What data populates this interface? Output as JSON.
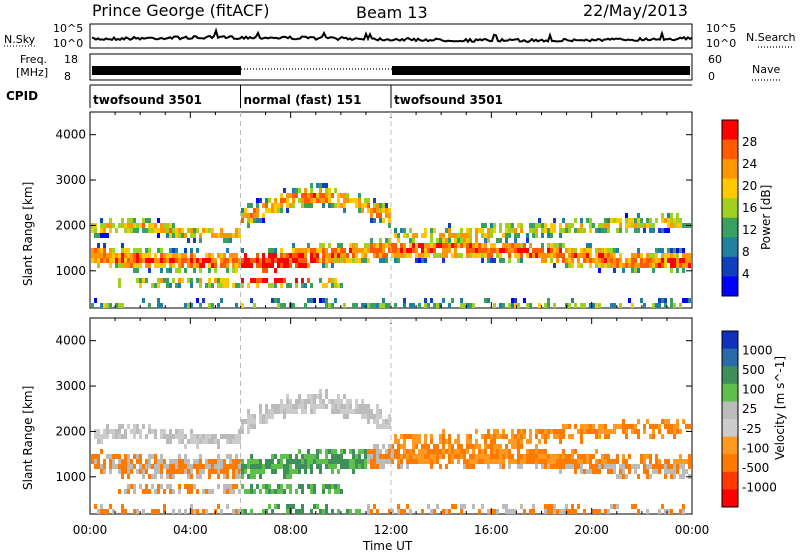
{
  "header": {
    "radar": "Prince George (fitACF)",
    "beam": "Beam 13",
    "date": "22/May/2013"
  },
  "noise_panel": {
    "left_label": "N.Sky",
    "right_label": "N.Search",
    "left_ticks": [
      "10^5",
      "10^0"
    ],
    "right_ticks": [
      "10^5",
      "10^0"
    ]
  },
  "freq_panel": {
    "left_label_1": "Freq.",
    "left_label_2": "[MHz]",
    "right_label": "Nave",
    "left_ticks": [
      "18",
      "8"
    ],
    "right_ticks": [
      "60",
      "0"
    ]
  },
  "cpid": {
    "label": "CPID",
    "segments": [
      {
        "label": "twofsound 3501",
        "start_hour": 0,
        "end_hour": 6
      },
      {
        "label": "normal (fast) 151",
        "start_hour": 6,
        "end_hour": 12
      },
      {
        "label": "twofsound 3501",
        "start_hour": 12,
        "end_hour": 24
      }
    ]
  },
  "chart_data": [
    {
      "type": "heatmap",
      "quantity": "Power",
      "ylabel": "Slant Range [km]",
      "colorbar_label": "Power [dB]",
      "colorbar_ticks": [
        "28",
        "24",
        "20",
        "16",
        "12",
        "8",
        "4"
      ],
      "colorbar_colors": [
        "#ff0000",
        "#ff5a00",
        "#ff9600",
        "#ffc800",
        "#a0d020",
        "#3aa060",
        "#2080a0",
        "#1040c0",
        "#0000ff"
      ],
      "y_ticks": [
        "1000",
        "2000",
        "3000",
        "4000"
      ],
      "ylim": [
        180,
        4500
      ],
      "x_range_hours": [
        0,
        24
      ],
      "mode_boundaries_hours": [
        6,
        12
      ]
    },
    {
      "type": "heatmap",
      "quantity": "Velocity",
      "ylabel": "Slant Range [km]",
      "colorbar_label": "Velocity [m s^-1]",
      "colorbar_ticks": [
        "1000",
        "500",
        "100",
        "25",
        "-25",
        "-100",
        "-500",
        "-1000"
      ],
      "colorbar_colors": [
        "#1030c0",
        "#2a6aa8",
        "#3f8f5a",
        "#5cc04a",
        "#bbbbbb",
        "#cccccc",
        "#ff9a20",
        "#ff7a00",
        "#ff3a00",
        "#ff0000"
      ],
      "y_ticks": [
        "1000",
        "2000",
        "3000",
        "4000"
      ],
      "ylim": [
        180,
        4500
      ],
      "x_range_hours": [
        0,
        24
      ],
      "mode_boundaries_hours": [
        6,
        12
      ]
    }
  ],
  "time_axis": {
    "ticks": [
      "00:00",
      "04:00",
      "08:00",
      "12:00",
      "16:00",
      "20:00",
      "00:00"
    ],
    "label": "Time UT"
  }
}
